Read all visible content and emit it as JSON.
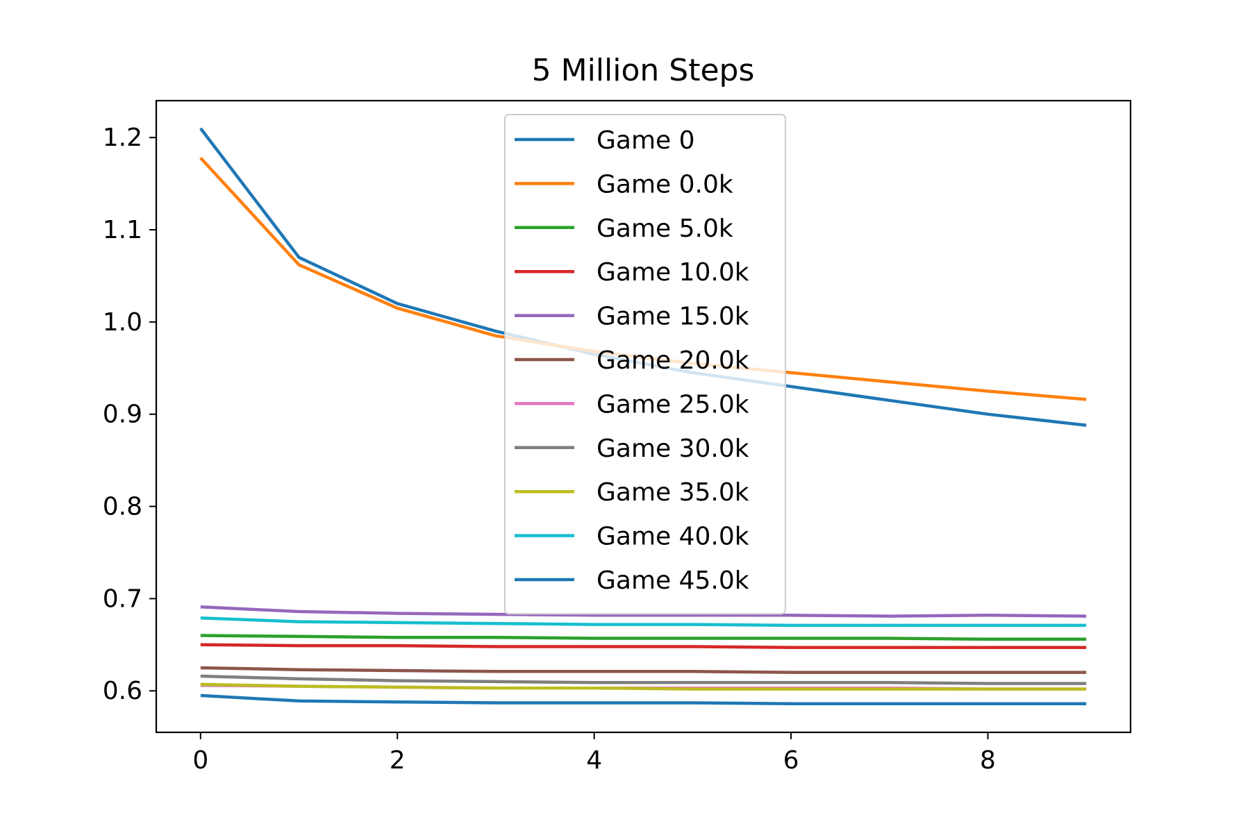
{
  "chart_data": {
    "type": "line",
    "title": "5 Million Steps",
    "xlabel": "",
    "ylabel": "",
    "xlim": [
      -0.45,
      9.45
    ],
    "ylim": [
      0.555,
      1.24
    ],
    "xticks": [
      0,
      2,
      4,
      6,
      8
    ],
    "yticks": [
      0.6,
      0.7,
      0.8,
      0.9,
      1.0,
      1.1,
      1.2
    ],
    "ytick_labels": [
      "0.6",
      "0.7",
      "0.8",
      "0.9",
      "1.0",
      "1.1",
      "1.2"
    ],
    "xtick_labels": [
      "0",
      "2",
      "4",
      "6",
      "8"
    ],
    "legend_position": "upper center",
    "grid": false,
    "x": [
      0,
      1,
      2,
      3,
      4,
      5,
      6,
      7,
      8,
      9
    ],
    "series": [
      {
        "name": "Game 0",
        "color": "#1f77b4",
        "values": [
          1.21,
          1.07,
          1.02,
          0.99,
          0.965,
          0.945,
          0.93,
          0.915,
          0.9,
          0.888
        ]
      },
      {
        "name": "Game 0.0k",
        "color": "#ff7f0e",
        "values": [
          1.178,
          1.062,
          1.015,
          0.985,
          0.968,
          0.955,
          0.945,
          0.935,
          0.925,
          0.916
        ]
      },
      {
        "name": "Game 5.0k",
        "color": "#2ca02c",
        "values": [
          0.66,
          0.659,
          0.658,
          0.658,
          0.657,
          0.657,
          0.657,
          0.657,
          0.656,
          0.656
        ]
      },
      {
        "name": "Game 10.0k",
        "color": "#d62728",
        "values": [
          0.65,
          0.649,
          0.649,
          0.648,
          0.648,
          0.648,
          0.647,
          0.647,
          0.647,
          0.647
        ]
      },
      {
        "name": "Game 15.0k",
        "color": "#9467bd",
        "values": [
          0.691,
          0.686,
          0.684,
          0.683,
          0.682,
          0.682,
          0.682,
          0.681,
          0.682,
          0.681
        ]
      },
      {
        "name": "Game 20.0k",
        "color": "#8c564b",
        "values": [
          0.625,
          0.623,
          0.622,
          0.621,
          0.621,
          0.621,
          0.62,
          0.62,
          0.62,
          0.62
        ]
      },
      {
        "name": "Game 25.0k",
        "color": "#e377c2",
        "values": [
          0.606,
          0.605,
          0.604,
          0.603,
          0.603,
          0.603,
          0.603,
          0.603,
          0.602,
          0.602
        ]
      },
      {
        "name": "Game 30.0k",
        "color": "#7f7f7f",
        "values": [
          0.616,
          0.613,
          0.611,
          0.61,
          0.609,
          0.609,
          0.609,
          0.609,
          0.608,
          0.608
        ]
      },
      {
        "name": "Game 35.0k",
        "color": "#bcbd22",
        "values": [
          0.607,
          0.605,
          0.604,
          0.603,
          0.603,
          0.602,
          0.602,
          0.602,
          0.602,
          0.602
        ]
      },
      {
        "name": "Game 40.0k",
        "color": "#17becf",
        "values": [
          0.679,
          0.675,
          0.674,
          0.673,
          0.672,
          0.672,
          0.671,
          0.671,
          0.671,
          0.671
        ]
      },
      {
        "name": "Game 45.0k",
        "color": "#1f77b4",
        "values": [
          0.595,
          0.589,
          0.588,
          0.587,
          0.587,
          0.587,
          0.586,
          0.586,
          0.586,
          0.586
        ]
      }
    ]
  }
}
